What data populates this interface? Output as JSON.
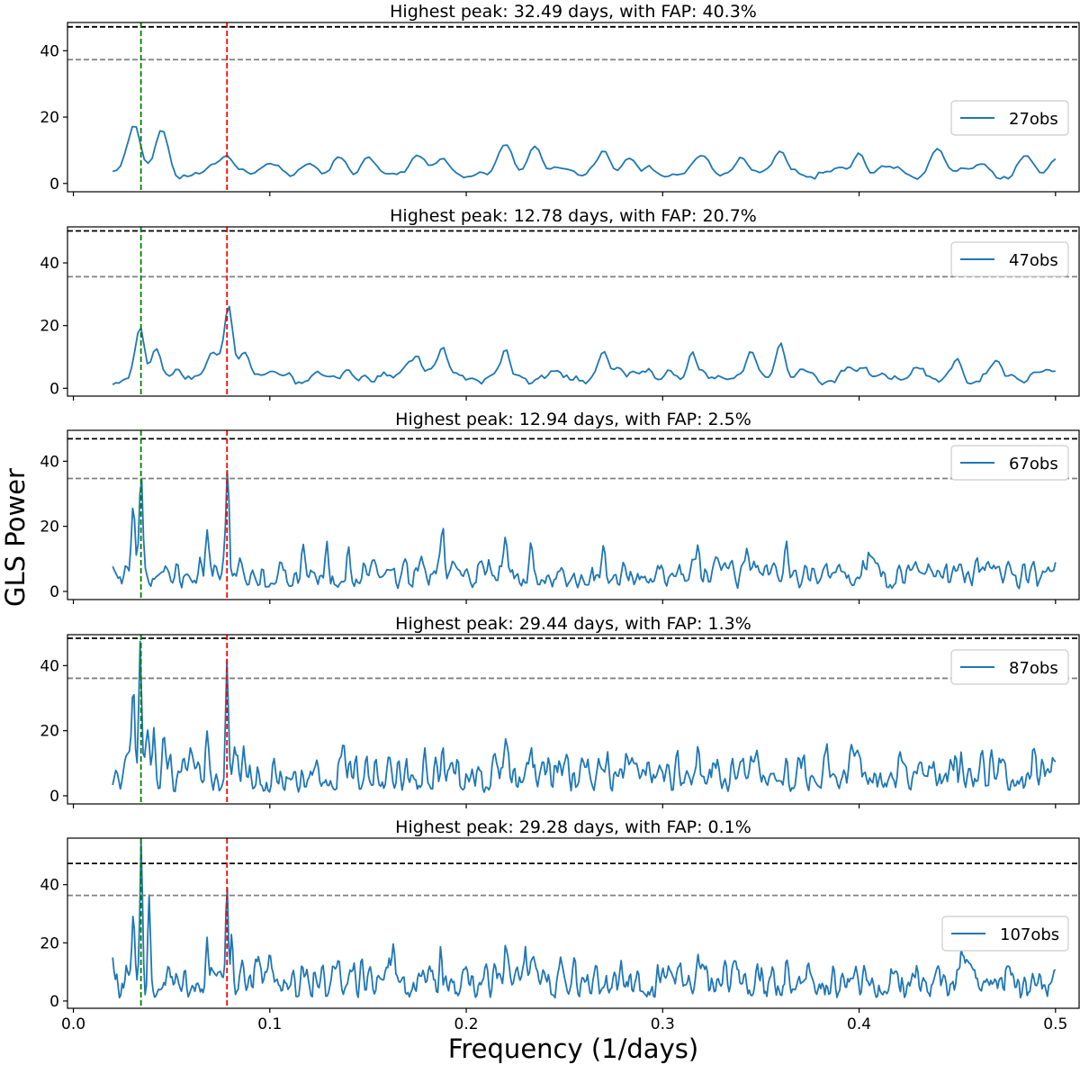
{
  "figure": {
    "xlabel": "Frequency (1/days)",
    "ylabel": "GLS Power"
  },
  "colors": {
    "series": "#1f77b4",
    "marker_green": "#008000",
    "marker_red": "#ff0000",
    "fap_high": "#000000",
    "fap_low": "#808080"
  },
  "chart_data": [
    {
      "type": "line",
      "title": "Highest peak: 32.49 days, with FAP: 40.3%",
      "legend": "27obs",
      "legend_loc": "center-right",
      "xlim": [
        -0.003,
        0.512
      ],
      "ylim": [
        -2.5,
        48.5
      ],
      "xticks": [
        0.0,
        0.1,
        0.2,
        0.3,
        0.4,
        0.5
      ],
      "xtick_labels_shown": false,
      "yticks": [
        0,
        20,
        40
      ],
      "ytick_labels": [
        "0",
        "20",
        "40"
      ],
      "hlines": [
        {
          "y": 47.2,
          "style": "dashed",
          "color": "black"
        },
        {
          "y": 37.3,
          "style": "dashed",
          "color": "gray"
        }
      ],
      "vlines": [
        {
          "x": 0.0344,
          "style": "dashed",
          "color": "green"
        },
        {
          "x": 0.0782,
          "style": "dashed",
          "color": "red"
        }
      ],
      "series": [
        {
          "name": "27obs",
          "x_range": [
            0.02,
            0.5
          ],
          "n": 240,
          "seed": 11,
          "width": 0.004,
          "base": 4.5,
          "amp": 4,
          "peaks": [
            [
              0.031,
              17.8
            ],
            [
              0.045,
              16.3
            ],
            [
              0.078,
              8.5
            ],
            [
              0.1,
              6
            ],
            [
              0.12,
              6
            ],
            [
              0.135,
              8
            ],
            [
              0.15,
              8
            ],
            [
              0.175,
              8.5
            ],
            [
              0.188,
              7.6
            ],
            [
              0.22,
              11.8
            ],
            [
              0.235,
              11.2
            ],
            [
              0.27,
              10
            ],
            [
              0.283,
              7.6
            ],
            [
              0.32,
              8.4
            ],
            [
              0.34,
              8
            ],
            [
              0.36,
              9.8
            ],
            [
              0.4,
              9.2
            ],
            [
              0.44,
              10.5
            ],
            [
              0.485,
              8.5
            ],
            [
              0.5,
              7.4
            ]
          ]
        }
      ]
    },
    {
      "type": "line",
      "title": "Highest peak: 12.78 days, with FAP: 20.7%",
      "legend": "47obs",
      "legend_loc": "top-right",
      "xlim": [
        -0.003,
        0.512
      ],
      "ylim": [
        -2.5,
        51.5
      ],
      "xticks": [
        0.0,
        0.1,
        0.2,
        0.3,
        0.4,
        0.5
      ],
      "xtick_labels_shown": false,
      "yticks": [
        0,
        20,
        40
      ],
      "ytick_labels": [
        "0",
        "20",
        "40"
      ],
      "hlines": [
        {
          "y": 50.2,
          "style": "dashed",
          "color": "black"
        },
        {
          "y": 35.6,
          "style": "dashed",
          "color": "gray"
        }
      ],
      "vlines": [
        {
          "x": 0.0344,
          "style": "dashed",
          "color": "green"
        },
        {
          "x": 0.0782,
          "style": "dashed",
          "color": "red"
        }
      ],
      "series": [
        {
          "name": "47obs",
          "x_range": [
            0.02,
            0.5
          ],
          "n": 300,
          "seed": 23,
          "width": 0.0028,
          "base": 4.5,
          "amp": 5,
          "peaks": [
            [
              0.034,
              19.6
            ],
            [
              0.042,
              12.7
            ],
            [
              0.071,
              11.5
            ],
            [
              0.079,
              26.5
            ],
            [
              0.087,
              11.5
            ],
            [
              0.175,
              10.5
            ],
            [
              0.188,
              13.2
            ],
            [
              0.22,
              12.6
            ],
            [
              0.27,
              11.8
            ],
            [
              0.315,
              11.7
            ],
            [
              0.345,
              12
            ],
            [
              0.36,
              14.5
            ],
            [
              0.45,
              9.5
            ],
            [
              0.47,
              9
            ],
            [
              0.5,
              5.5
            ]
          ]
        }
      ]
    },
    {
      "type": "line",
      "title": "Highest peak: 12.94 days, with FAP: 2.5%",
      "legend": "67obs",
      "legend_loc": "top-right",
      "xlim": [
        -0.003,
        0.512
      ],
      "ylim": [
        -2.5,
        49.5
      ],
      "xticks": [
        0.0,
        0.1,
        0.2,
        0.3,
        0.4,
        0.5
      ],
      "xtick_labels_shown": false,
      "yticks": [
        0,
        20,
        40
      ],
      "ytick_labels": [
        "0",
        "20",
        "40"
      ],
      "hlines": [
        {
          "y": 46.9,
          "style": "dashed",
          "color": "black"
        },
        {
          "y": 34.7,
          "style": "dashed",
          "color": "gray"
        }
      ],
      "vlines": [
        {
          "x": 0.0344,
          "style": "dashed",
          "color": "green"
        },
        {
          "x": 0.0782,
          "style": "dashed",
          "color": "red"
        }
      ],
      "series": [
        {
          "name": "67obs",
          "x_range": [
            0.02,
            0.5
          ],
          "n": 520,
          "seed": 37,
          "width": 0.0011,
          "base": 3.5,
          "amp": 6.5,
          "peaks": [
            [
              0.0305,
              27
            ],
            [
              0.0345,
              36
            ],
            [
              0.068,
              19
            ],
            [
              0.0785,
              38.5
            ],
            [
              0.117,
              14.5
            ],
            [
              0.129,
              15.5
            ],
            [
              0.14,
              14
            ],
            [
              0.188,
              20.5
            ],
            [
              0.22,
              17
            ],
            [
              0.233,
              15.5
            ],
            [
              0.27,
              14.5
            ],
            [
              0.318,
              14.5
            ],
            [
              0.343,
              13.5
            ],
            [
              0.363,
              15.5
            ],
            [
              0.405,
              12.5
            ],
            [
              0.46,
              10.5
            ],
            [
              0.5,
              6.5
            ]
          ]
        }
      ]
    },
    {
      "type": "line",
      "title": "Highest peak: 29.44 days, with FAP: 1.3%",
      "legend": "87obs",
      "legend_loc": "top-right",
      "xlim": [
        -0.003,
        0.512
      ],
      "ylim": [
        -2.5,
        49.5
      ],
      "xticks": [
        0.0,
        0.1,
        0.2,
        0.3,
        0.4,
        0.5
      ],
      "xtick_labels_shown": false,
      "yticks": [
        0,
        20,
        40
      ],
      "ytick_labels": [
        "0",
        "20",
        "40"
      ],
      "hlines": [
        {
          "y": 48.4,
          "style": "dashed",
          "color": "black"
        },
        {
          "y": 36.1,
          "style": "dashed",
          "color": "gray"
        }
      ],
      "vlines": [
        {
          "x": 0.0344,
          "style": "dashed",
          "color": "green"
        },
        {
          "x": 0.0782,
          "style": "dashed",
          "color": "red"
        }
      ],
      "series": [
        {
          "name": "87obs",
          "x_range": [
            0.02,
            0.5
          ],
          "n": 620,
          "seed": 53,
          "width": 0.0009,
          "base": 4.5,
          "amp": 9,
          "peaks": [
            [
              0.0305,
              33.5
            ],
            [
              0.034,
              47.5
            ],
            [
              0.038,
              20.5
            ],
            [
              0.041,
              21
            ],
            [
              0.046,
              19
            ],
            [
              0.068,
              20
            ],
            [
              0.0782,
              42
            ],
            [
              0.082,
              15
            ],
            [
              0.137,
              15.5
            ],
            [
              0.188,
              15.5
            ],
            [
              0.22,
              17.5
            ],
            [
              0.233,
              15.5
            ],
            [
              0.272,
              13.5
            ],
            [
              0.318,
              15.5
            ],
            [
              0.363,
              12
            ],
            [
              0.452,
              13.5
            ],
            [
              0.5,
              6.5
            ]
          ]
        }
      ]
    },
    {
      "type": "line",
      "title": "Highest peak: 29.28 days, with FAP: 0.1%",
      "legend": "107obs",
      "legend_loc": "center-right",
      "xlim": [
        -0.003,
        0.512
      ],
      "ylim": [
        -2.5,
        56.0
      ],
      "xticks": [
        0.0,
        0.1,
        0.2,
        0.3,
        0.4,
        0.5
      ],
      "xtick_labels": [
        "0.0",
        "0.1",
        "0.2",
        "0.3",
        "0.4",
        "0.5"
      ],
      "xtick_labels_shown": true,
      "yticks": [
        0,
        20,
        40
      ],
      "ytick_labels": [
        "0",
        "20",
        "40"
      ],
      "hlines": [
        {
          "y": 47.3,
          "style": "dashed",
          "color": "black"
        },
        {
          "y": 36.3,
          "style": "dashed",
          "color": "gray"
        }
      ],
      "vlines": [
        {
          "x": 0.0344,
          "style": "dashed",
          "color": "green"
        },
        {
          "x": 0.0782,
          "style": "dashed",
          "color": "red"
        }
      ],
      "series": [
        {
          "name": "107obs",
          "x_range": [
            0.02,
            0.5
          ],
          "n": 700,
          "seed": 71,
          "width": 0.0008,
          "base": 4.5,
          "amp": 9,
          "peaks": [
            [
              0.02,
              15
            ],
            [
              0.0305,
              30
            ],
            [
              0.0345,
              56
            ],
            [
              0.0385,
              36.5
            ],
            [
              0.068,
              22
            ],
            [
              0.0782,
              40
            ],
            [
              0.0805,
              23
            ],
            [
              0.1,
              17
            ],
            [
              0.163,
              20
            ],
            [
              0.187,
              19
            ],
            [
              0.22,
              19.5
            ],
            [
              0.23,
              19
            ],
            [
              0.255,
              15
            ],
            [
              0.318,
              16
            ],
            [
              0.363,
              15
            ],
            [
              0.452,
              18
            ],
            [
              0.475,
              12.5
            ],
            [
              0.5,
              9
            ]
          ]
        }
      ]
    }
  ]
}
